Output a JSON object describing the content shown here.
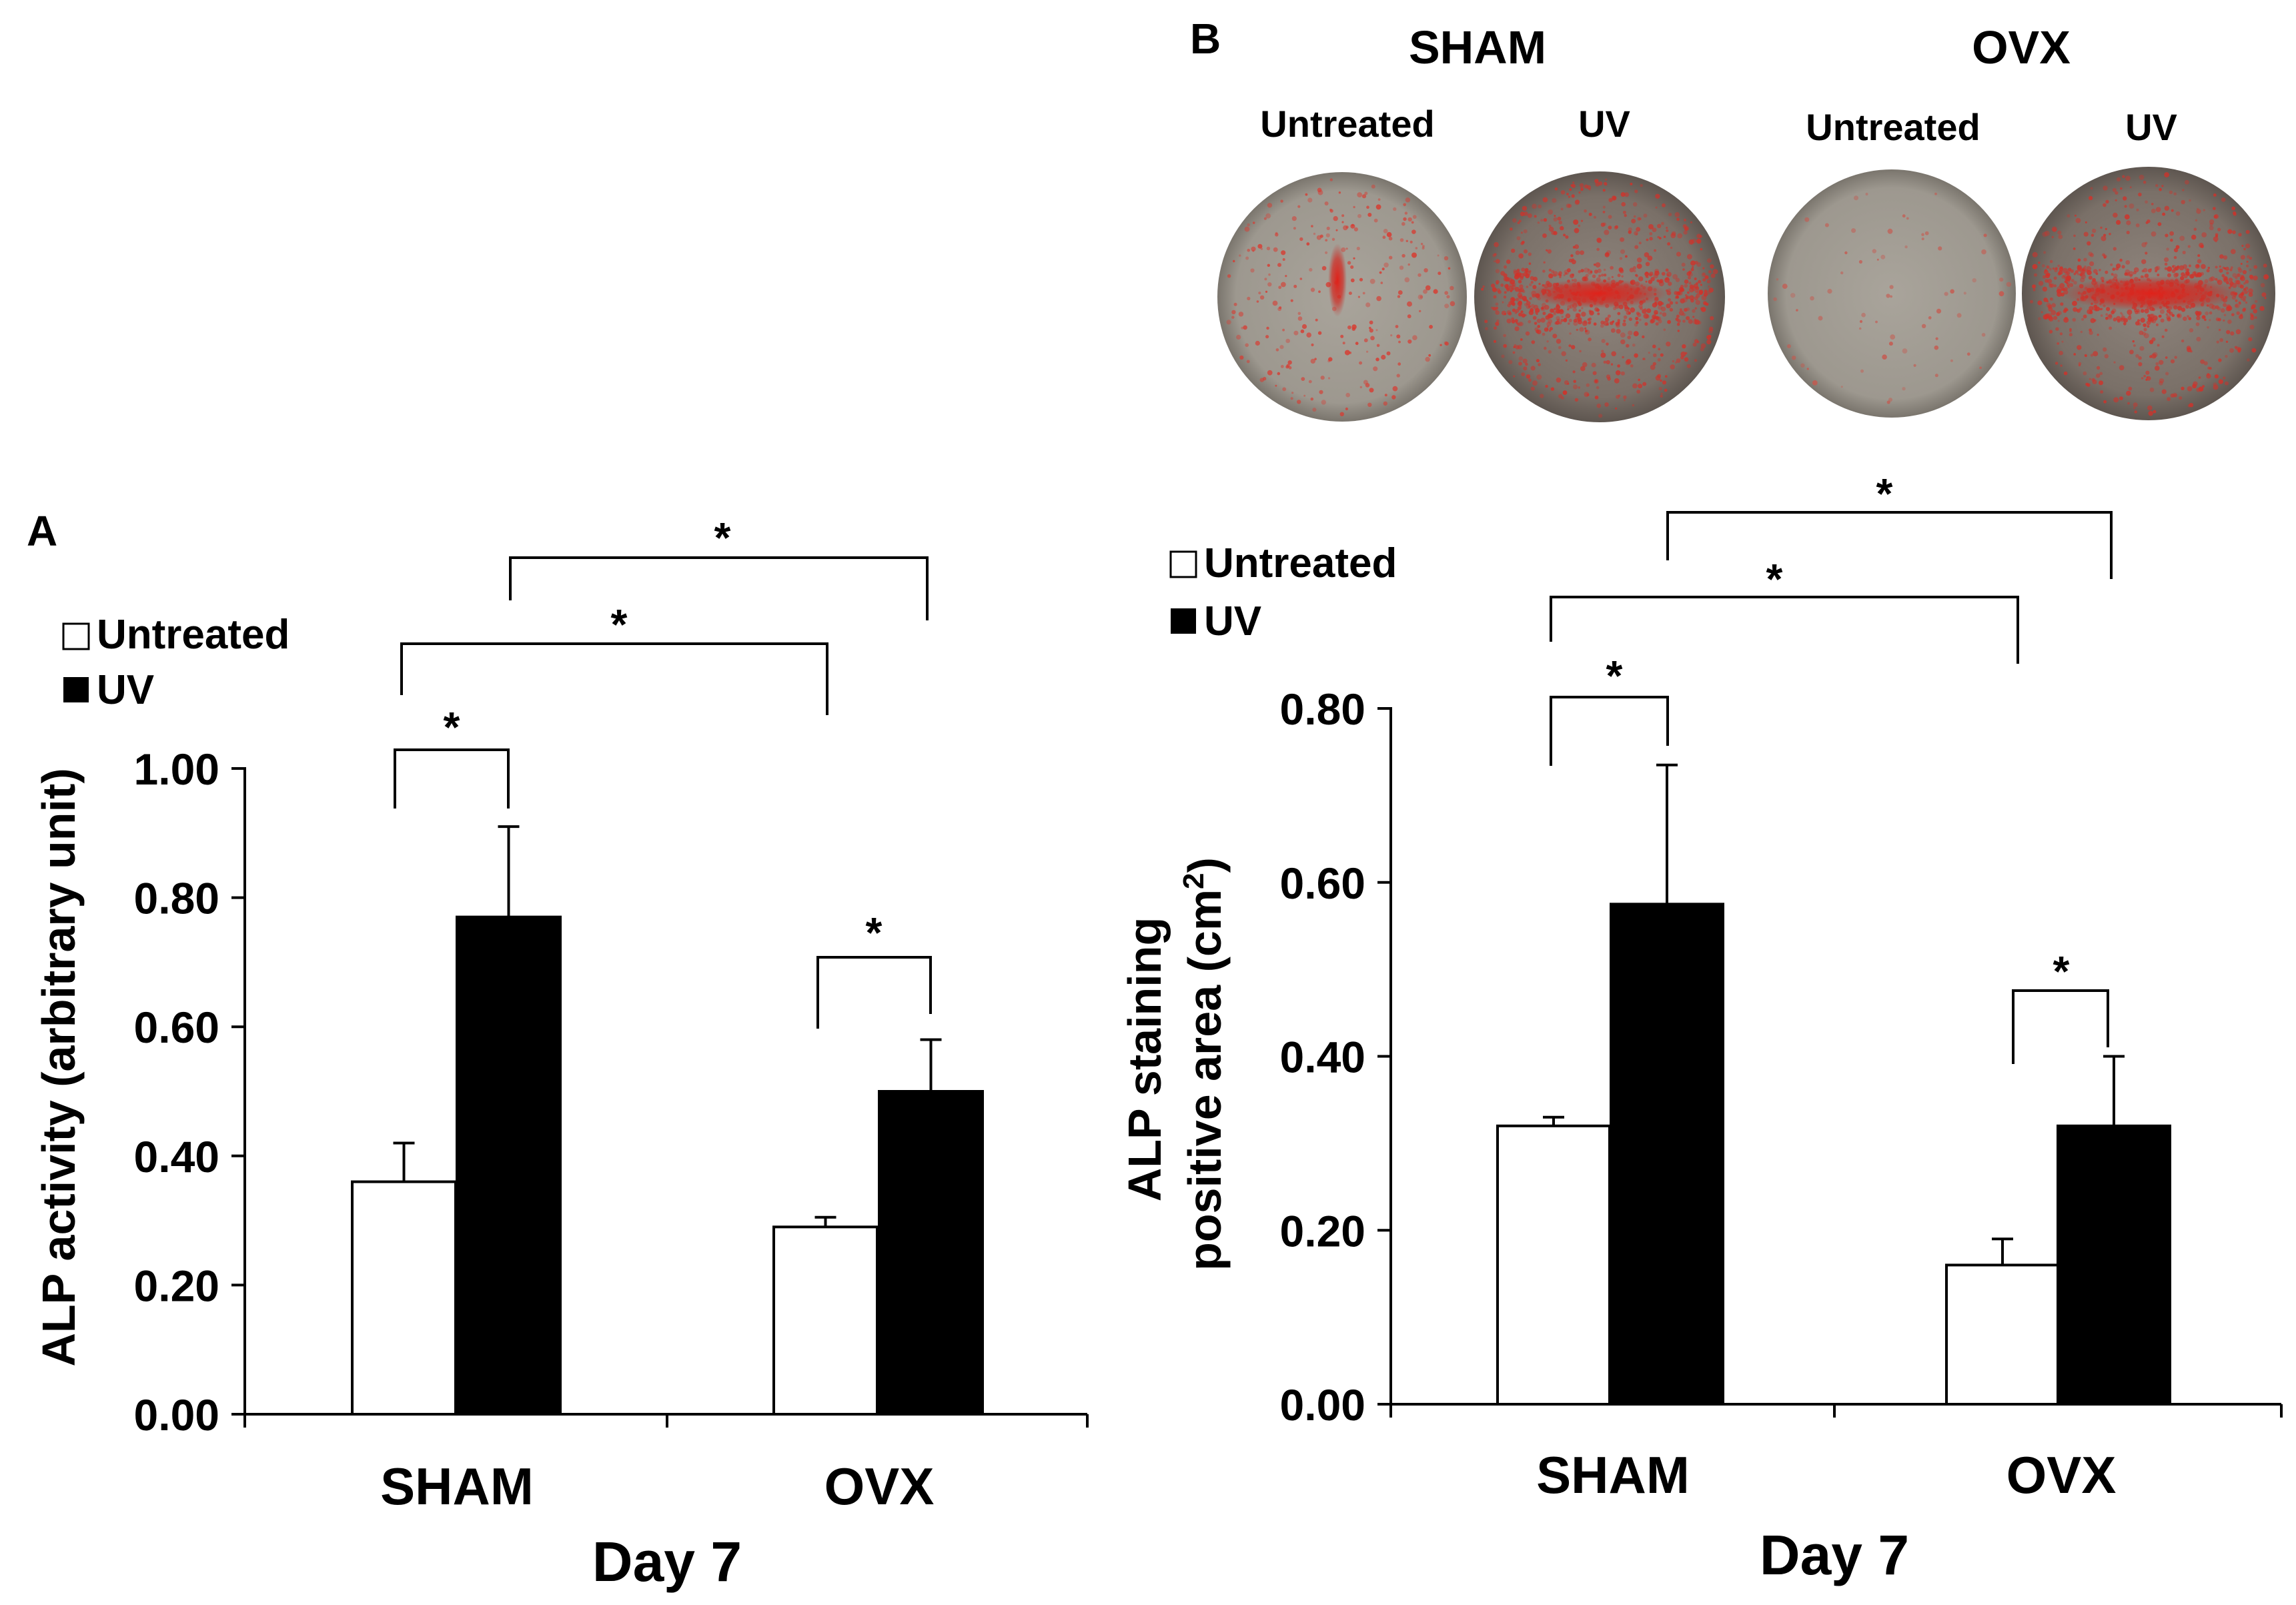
{
  "figure": {
    "panel_a_label": "A",
    "panel_b_label": "B"
  },
  "plates": {
    "groups": [
      {
        "name": "SHAM",
        "conditions": [
          "Untreated",
          "UV"
        ]
      },
      {
        "name": "OVX",
        "conditions": [
          "Untreated",
          "UV"
        ]
      }
    ]
  },
  "chart_data": [
    {
      "panel": "A",
      "type": "bar",
      "title": "",
      "categories": [
        "SHAM",
        "OVX"
      ],
      "series": [
        {
          "name": "Untreated",
          "color": "#ffffff",
          "values": [
            0.36,
            0.29
          ],
          "errors": [
            0.06,
            0.015
          ]
        },
        {
          "name": "UV",
          "color": "#000000",
          "values": [
            0.77,
            0.5
          ],
          "errors": [
            0.14,
            0.08
          ]
        }
      ],
      "xlabel": "Day 7",
      "ylabel": "ALP activity (arbitrary unit)",
      "ylim": [
        0,
        1.0
      ],
      "yticks": [
        "0.00",
        "0.20",
        "0.40",
        "0.60",
        "0.80",
        "1.00"
      ],
      "legend": "top-left",
      "significance": [
        {
          "from": "SHAM Untreated",
          "to": "SHAM UV",
          "label": "*"
        },
        {
          "from": "OVX Untreated",
          "to": "OVX UV",
          "label": "*"
        },
        {
          "from": "SHAM Untreated",
          "to": "OVX Untreated",
          "label": "*"
        },
        {
          "from": "SHAM UV",
          "to": "OVX UV",
          "label": "*"
        }
      ]
    },
    {
      "panel": "B",
      "type": "bar",
      "title": "",
      "categories": [
        "SHAM",
        "OVX"
      ],
      "series": [
        {
          "name": "Untreated",
          "color": "#ffffff",
          "values": [
            0.32,
            0.16
          ],
          "errors": [
            0.01,
            0.03
          ]
        },
        {
          "name": "UV",
          "color": "#000000",
          "values": [
            0.575,
            0.32
          ],
          "errors": [
            0.16,
            0.08
          ]
        }
      ],
      "xlabel": "Day 7",
      "ylabel_line1": "ALP staining",
      "ylabel_line2": "positive area (cm",
      "ylabel_sup": "2",
      "ylabel_close": ")",
      "ylim": [
        0,
        0.8
      ],
      "yticks": [
        "0.00",
        "0.20",
        "0.40",
        "0.60",
        "0.80"
      ],
      "legend": "top-left",
      "significance": [
        {
          "from": "SHAM Untreated",
          "to": "SHAM UV",
          "label": "*"
        },
        {
          "from": "OVX Untreated",
          "to": "OVX UV",
          "label": "*"
        },
        {
          "from": "SHAM Untreated",
          "to": "OVX Untreated",
          "label": "*"
        },
        {
          "from": "SHAM UV",
          "to": "OVX UV",
          "label": "*"
        }
      ]
    }
  ]
}
